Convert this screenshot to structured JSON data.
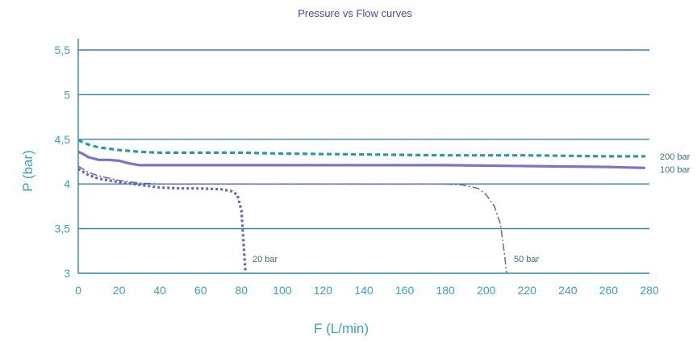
{
  "chart_data": {
    "type": "line",
    "title": "Pressure vs Flow curves",
    "xlabel": "F (L/min)",
    "ylabel": "P (bar)",
    "xlim": [
      0,
      280
    ],
    "ylim": [
      3,
      5.5
    ],
    "x_ticks": [
      "0",
      "20",
      "40",
      "60",
      "80",
      "100",
      "120",
      "140",
      "160",
      "180",
      "200",
      "220",
      "240",
      "260",
      "280"
    ],
    "y_ticks": [
      "3",
      "3,5",
      "4",
      "4,5",
      "5",
      "5,5"
    ],
    "grid": "horizontal",
    "series": [
      {
        "name": "200 bar",
        "color": "#2a98aa",
        "style": "dashed",
        "x": [
          0,
          5,
          10,
          20,
          30,
          40,
          60,
          80,
          100,
          140,
          180,
          220,
          260,
          278
        ],
        "y": [
          4.49,
          4.44,
          4.41,
          4.38,
          4.36,
          4.35,
          4.35,
          4.35,
          4.34,
          4.33,
          4.32,
          4.32,
          4.31,
          4.31
        ]
      },
      {
        "name": "100 bar",
        "color": "#7b73c6",
        "style": "solid",
        "x": [
          0,
          2,
          5,
          10,
          15,
          20,
          25,
          30,
          40,
          60,
          100,
          140,
          180,
          220,
          260,
          278
        ],
        "y": [
          4.36,
          4.34,
          4.3,
          4.27,
          4.27,
          4.26,
          4.23,
          4.21,
          4.21,
          4.21,
          4.21,
          4.21,
          4.21,
          4.2,
          4.19,
          4.18
        ]
      },
      {
        "name": "50 bar",
        "color": "#6a60c0",
        "style": "dashdot",
        "x": [
          0,
          5,
          10,
          20,
          30,
          40,
          60,
          80,
          100,
          120,
          140,
          160,
          180,
          188,
          196,
          200,
          204,
          207,
          209,
          210
        ],
        "y": [
          4.2,
          4.13,
          4.09,
          4.04,
          4.01,
          4.0,
          4.0,
          4.0,
          4.0,
          4.0,
          4.0,
          4.0,
          4.0,
          3.99,
          3.95,
          3.88,
          3.75,
          3.55,
          3.2,
          3.0
        ]
      },
      {
        "name": "20 bar",
        "color": "#6a60c0",
        "style": "dotted",
        "x": [
          0,
          5,
          10,
          20,
          30,
          40,
          50,
          60,
          70,
          75,
          78,
          80,
          81,
          82
        ],
        "y": [
          4.17,
          4.1,
          4.06,
          4.02,
          3.99,
          3.96,
          3.95,
          3.95,
          3.94,
          3.92,
          3.88,
          3.7,
          3.35,
          3.0
        ]
      }
    ],
    "series_labels": [
      "200 bar",
      "100 bar",
      "50 bar",
      "20 bar"
    ]
  }
}
